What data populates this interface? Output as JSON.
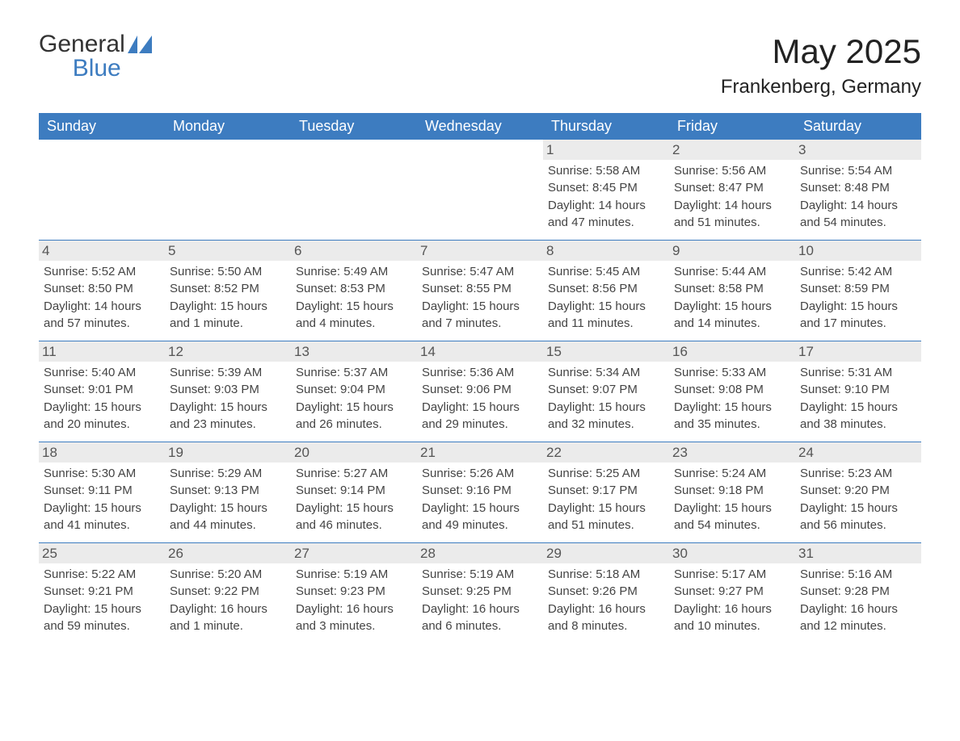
{
  "brand": {
    "word1": "General",
    "word2": "Blue"
  },
  "title": "May 2025",
  "location": "Frankenberg, Germany",
  "colors": {
    "header_blue": "#3d7cc0",
    "row_gray": "#ebebeb",
    "page_bg": "#ffffff",
    "text": "#333333"
  },
  "weekdays": [
    "Sunday",
    "Monday",
    "Tuesday",
    "Wednesday",
    "Thursday",
    "Friday",
    "Saturday"
  ],
  "weeks": [
    [
      {
        "empty": true
      },
      {
        "empty": true
      },
      {
        "empty": true
      },
      {
        "empty": true
      },
      {
        "n": "1",
        "sunrise": "Sunrise: 5:58 AM",
        "sunset": "Sunset: 8:45 PM",
        "d1": "Daylight: 14 hours",
        "d2": "and 47 minutes."
      },
      {
        "n": "2",
        "sunrise": "Sunrise: 5:56 AM",
        "sunset": "Sunset: 8:47 PM",
        "d1": "Daylight: 14 hours",
        "d2": "and 51 minutes."
      },
      {
        "n": "3",
        "sunrise": "Sunrise: 5:54 AM",
        "sunset": "Sunset: 8:48 PM",
        "d1": "Daylight: 14 hours",
        "d2": "and 54 minutes."
      }
    ],
    [
      {
        "n": "4",
        "sunrise": "Sunrise: 5:52 AM",
        "sunset": "Sunset: 8:50 PM",
        "d1": "Daylight: 14 hours",
        "d2": "and 57 minutes."
      },
      {
        "n": "5",
        "sunrise": "Sunrise: 5:50 AM",
        "sunset": "Sunset: 8:52 PM",
        "d1": "Daylight: 15 hours",
        "d2": "and 1 minute."
      },
      {
        "n": "6",
        "sunrise": "Sunrise: 5:49 AM",
        "sunset": "Sunset: 8:53 PM",
        "d1": "Daylight: 15 hours",
        "d2": "and 4 minutes."
      },
      {
        "n": "7",
        "sunrise": "Sunrise: 5:47 AM",
        "sunset": "Sunset: 8:55 PM",
        "d1": "Daylight: 15 hours",
        "d2": "and 7 minutes."
      },
      {
        "n": "8",
        "sunrise": "Sunrise: 5:45 AM",
        "sunset": "Sunset: 8:56 PM",
        "d1": "Daylight: 15 hours",
        "d2": "and 11 minutes."
      },
      {
        "n": "9",
        "sunrise": "Sunrise: 5:44 AM",
        "sunset": "Sunset: 8:58 PM",
        "d1": "Daylight: 15 hours",
        "d2": "and 14 minutes."
      },
      {
        "n": "10",
        "sunrise": "Sunrise: 5:42 AM",
        "sunset": "Sunset: 8:59 PM",
        "d1": "Daylight: 15 hours",
        "d2": "and 17 minutes."
      }
    ],
    [
      {
        "n": "11",
        "sunrise": "Sunrise: 5:40 AM",
        "sunset": "Sunset: 9:01 PM",
        "d1": "Daylight: 15 hours",
        "d2": "and 20 minutes."
      },
      {
        "n": "12",
        "sunrise": "Sunrise: 5:39 AM",
        "sunset": "Sunset: 9:03 PM",
        "d1": "Daylight: 15 hours",
        "d2": "and 23 minutes."
      },
      {
        "n": "13",
        "sunrise": "Sunrise: 5:37 AM",
        "sunset": "Sunset: 9:04 PM",
        "d1": "Daylight: 15 hours",
        "d2": "and 26 minutes."
      },
      {
        "n": "14",
        "sunrise": "Sunrise: 5:36 AM",
        "sunset": "Sunset: 9:06 PM",
        "d1": "Daylight: 15 hours",
        "d2": "and 29 minutes."
      },
      {
        "n": "15",
        "sunrise": "Sunrise: 5:34 AM",
        "sunset": "Sunset: 9:07 PM",
        "d1": "Daylight: 15 hours",
        "d2": "and 32 minutes."
      },
      {
        "n": "16",
        "sunrise": "Sunrise: 5:33 AM",
        "sunset": "Sunset: 9:08 PM",
        "d1": "Daylight: 15 hours",
        "d2": "and 35 minutes."
      },
      {
        "n": "17",
        "sunrise": "Sunrise: 5:31 AM",
        "sunset": "Sunset: 9:10 PM",
        "d1": "Daylight: 15 hours",
        "d2": "and 38 minutes."
      }
    ],
    [
      {
        "n": "18",
        "sunrise": "Sunrise: 5:30 AM",
        "sunset": "Sunset: 9:11 PM",
        "d1": "Daylight: 15 hours",
        "d2": "and 41 minutes."
      },
      {
        "n": "19",
        "sunrise": "Sunrise: 5:29 AM",
        "sunset": "Sunset: 9:13 PM",
        "d1": "Daylight: 15 hours",
        "d2": "and 44 minutes."
      },
      {
        "n": "20",
        "sunrise": "Sunrise: 5:27 AM",
        "sunset": "Sunset: 9:14 PM",
        "d1": "Daylight: 15 hours",
        "d2": "and 46 minutes."
      },
      {
        "n": "21",
        "sunrise": "Sunrise: 5:26 AM",
        "sunset": "Sunset: 9:16 PM",
        "d1": "Daylight: 15 hours",
        "d2": "and 49 minutes."
      },
      {
        "n": "22",
        "sunrise": "Sunrise: 5:25 AM",
        "sunset": "Sunset: 9:17 PM",
        "d1": "Daylight: 15 hours",
        "d2": "and 51 minutes."
      },
      {
        "n": "23",
        "sunrise": "Sunrise: 5:24 AM",
        "sunset": "Sunset: 9:18 PM",
        "d1": "Daylight: 15 hours",
        "d2": "and 54 minutes."
      },
      {
        "n": "24",
        "sunrise": "Sunrise: 5:23 AM",
        "sunset": "Sunset: 9:20 PM",
        "d1": "Daylight: 15 hours",
        "d2": "and 56 minutes."
      }
    ],
    [
      {
        "n": "25",
        "sunrise": "Sunrise: 5:22 AM",
        "sunset": "Sunset: 9:21 PM",
        "d1": "Daylight: 15 hours",
        "d2": "and 59 minutes."
      },
      {
        "n": "26",
        "sunrise": "Sunrise: 5:20 AM",
        "sunset": "Sunset: 9:22 PM",
        "d1": "Daylight: 16 hours",
        "d2": "and 1 minute."
      },
      {
        "n": "27",
        "sunrise": "Sunrise: 5:19 AM",
        "sunset": "Sunset: 9:23 PM",
        "d1": "Daylight: 16 hours",
        "d2": "and 3 minutes."
      },
      {
        "n": "28",
        "sunrise": "Sunrise: 5:19 AM",
        "sunset": "Sunset: 9:25 PM",
        "d1": "Daylight: 16 hours",
        "d2": "and 6 minutes."
      },
      {
        "n": "29",
        "sunrise": "Sunrise: 5:18 AM",
        "sunset": "Sunset: 9:26 PM",
        "d1": "Daylight: 16 hours",
        "d2": "and 8 minutes."
      },
      {
        "n": "30",
        "sunrise": "Sunrise: 5:17 AM",
        "sunset": "Sunset: 9:27 PM",
        "d1": "Daylight: 16 hours",
        "d2": "and 10 minutes."
      },
      {
        "n": "31",
        "sunrise": "Sunrise: 5:16 AM",
        "sunset": "Sunset: 9:28 PM",
        "d1": "Daylight: 16 hours",
        "d2": "and 12 minutes."
      }
    ]
  ]
}
